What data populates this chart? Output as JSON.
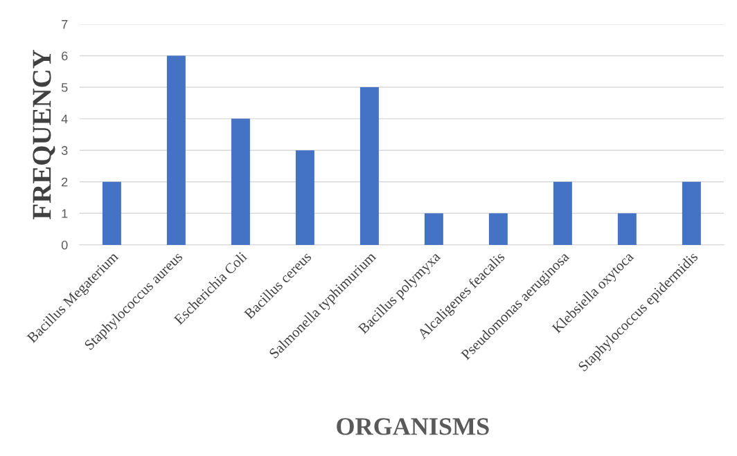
{
  "chart_data": {
    "type": "bar",
    "xlabel": "ORGANISMS",
    "ylabel": "FREQUENCY",
    "categories": [
      "Bacillus Megaterium",
      "Staphylococcus aureus",
      "Escherichia Coli",
      "Bacillus cereus",
      "Salmonella typhimurium",
      "Bacillus polymyxa",
      "Alcaligenes feacalis",
      "Pseudomonas aeruginosa",
      "Klebsiella oxytoca",
      "Staphylococcus epidermidis"
    ],
    "values": [
      2,
      6,
      4,
      3,
      5,
      1,
      1,
      2,
      1,
      2
    ],
    "color": "#4472c4",
    "ylim": [
      0,
      7
    ],
    "yticks": [
      0,
      1,
      2,
      3,
      4,
      5,
      6,
      7
    ],
    "grid": "y"
  }
}
